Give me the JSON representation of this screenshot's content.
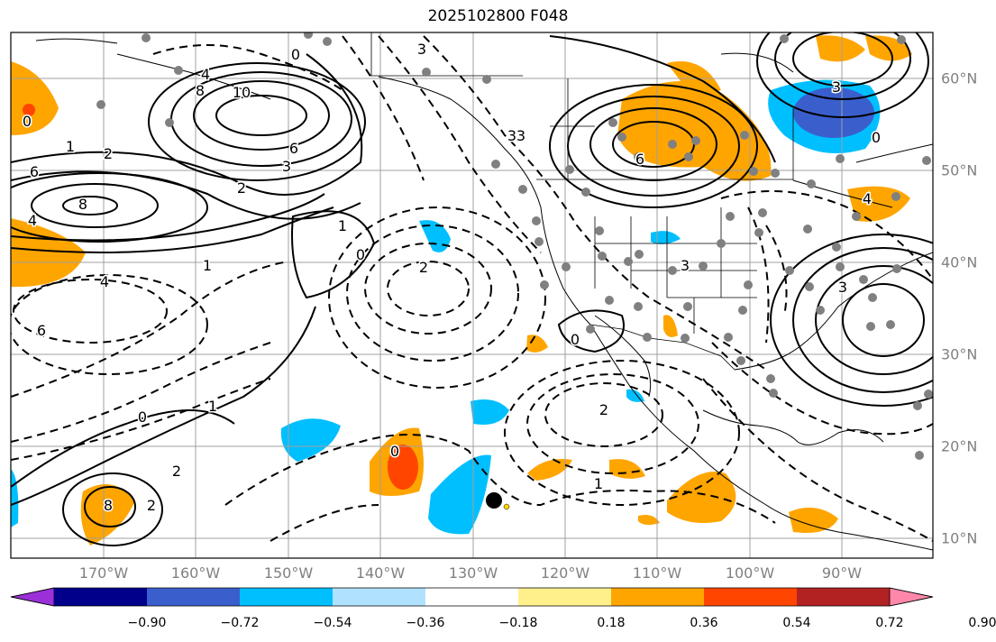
{
  "title": "2025102800 F048",
  "lon_labels": [
    "170°W",
    "160°W",
    "150°W",
    "140°W",
    "130°W",
    "120°W",
    "110°W",
    "100°W",
    "90°W"
  ],
  "lat_labels": [
    "60°N",
    "50°N",
    "40°N",
    "30°N",
    "20°N",
    "10°N"
  ],
  "colorbar": {
    "ticks": [
      "−0.90",
      "−0.72",
      "−0.54",
      "−0.36",
      "−0.18",
      "0.18",
      "0.36",
      "0.54",
      "0.72",
      "0.90"
    ],
    "colors": [
      "#9b30d9",
      "#00008b",
      "#3a5fcd",
      "#00bfff",
      "#b0e2ff",
      "#ffffff",
      "#fff08c",
      "#ffa500",
      "#ff4500",
      "#b22222",
      "#ff88aa"
    ]
  },
  "contour_labels": [
    "2",
    "4",
    "8",
    "10",
    "6",
    "3",
    "1",
    "0",
    "6",
    "8",
    "4",
    "2",
    "1",
    "0",
    "3",
    "4",
    "6",
    "8",
    "2",
    "2",
    "1",
    "0",
    "0",
    "3",
    "1",
    "2",
    "3",
    "0",
    "3",
    "4",
    "1",
    "6",
    "0",
    "2",
    "3",
    "3",
    "0"
  ],
  "colors": {
    "positive_fill": "#ffa500",
    "strong_positive": "#ff4500",
    "negative_fill": "#00bfff",
    "strong_negative": "#3a5fcd",
    "grid": "#a0a0a0",
    "station": "#808080"
  }
}
